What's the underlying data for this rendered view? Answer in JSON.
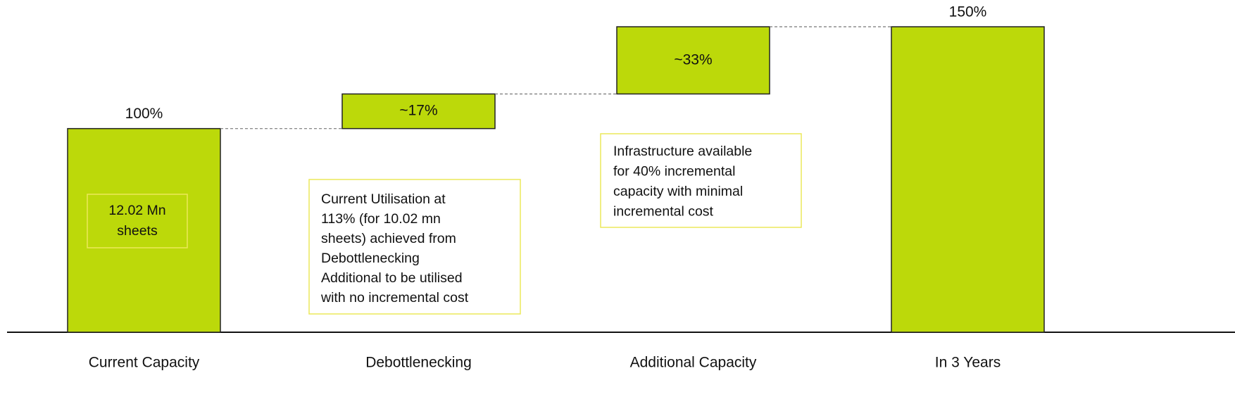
{
  "chart_data": {
    "type": "waterfall",
    "categories": [
      "Current Capacity",
      "Debottlenecking",
      "Additional Capacity",
      "In 3 Years"
    ],
    "values": [
      100,
      17,
      33,
      150
    ],
    "value_labels": [
      "100%",
      "~17%",
      "~33%",
      "150%"
    ],
    "color": "#bcd90a",
    "ylim": [
      0,
      150
    ],
    "annotations": [
      {
        "lines": [
          "12.02 Mn",
          "sheets"
        ]
      },
      {
        "lines": [
          "Current Utilisation at",
          "113% (for 10.02 mn",
          "sheets) achieved from",
          "Debottlenecking",
          "Additional to be utilised",
          "with no incremental cost"
        ]
      },
      {
        "lines": [
          "Infrastructure available",
          "for 40%  incremental",
          "capacity  with minimal",
          "incremental cost"
        ]
      }
    ]
  }
}
